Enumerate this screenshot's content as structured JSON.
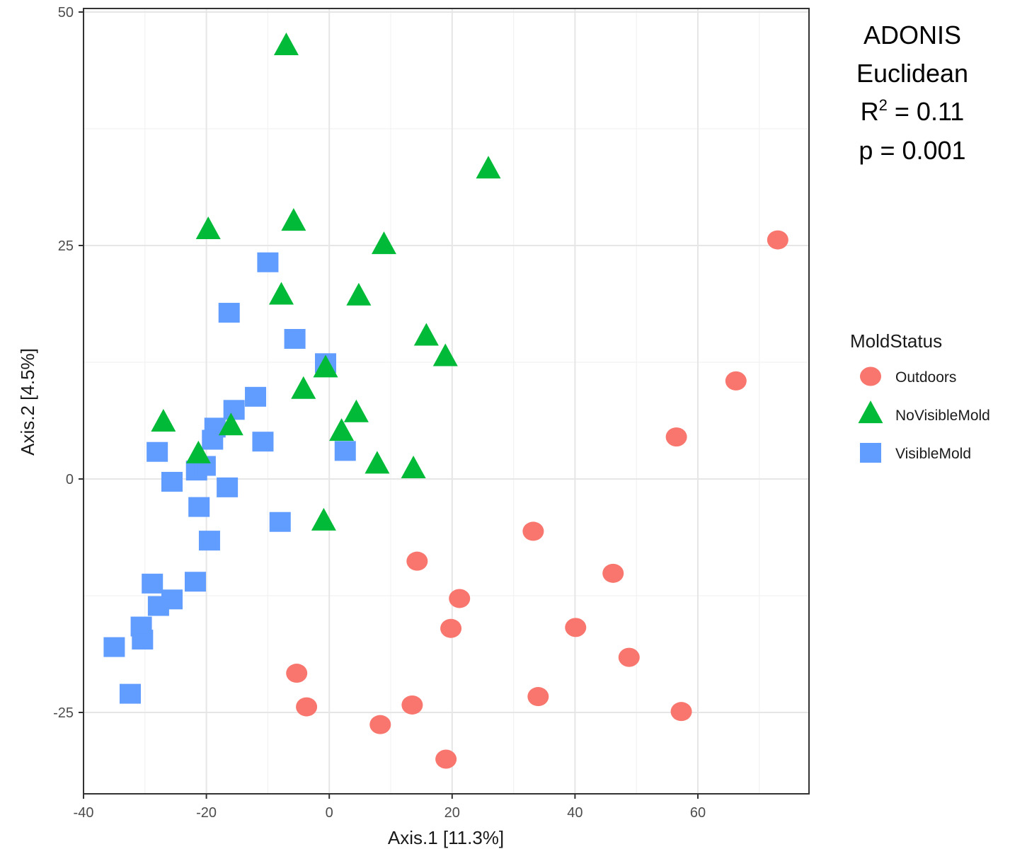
{
  "chart_data": {
    "type": "scatter",
    "xlabel": "Axis.1   [11.3%]",
    "ylabel": "Axis.2   [4.5%]",
    "xlim": [
      -40,
      78
    ],
    "ylim": [
      -33,
      50
    ],
    "xticks": [
      -40,
      -20,
      0,
      20,
      40,
      60
    ],
    "yticks": [
      -25,
      0,
      25,
      50
    ],
    "grid": true,
    "legend": {
      "title": "MoldStatus",
      "position": "right"
    },
    "annotation": {
      "line1": "ADONIS",
      "line2": "Euclidean",
      "line3_prefix": "R",
      "line3_sup": "2",
      "line3_suffix": " = 0.11",
      "line4": "p = 0.001"
    },
    "series": [
      {
        "name": "Outdoors",
        "shape": "circle",
        "color": "#F8766D",
        "points": [
          [
            73,
            25.6
          ],
          [
            66.2,
            10.5
          ],
          [
            56.5,
            4.5
          ],
          [
            33.2,
            -5.6
          ],
          [
            46.2,
            -10.1
          ],
          [
            14.3,
            -8.8
          ],
          [
            21.2,
            -12.8
          ],
          [
            19.8,
            -16
          ],
          [
            40.1,
            -15.9
          ],
          [
            48.8,
            -19.1
          ],
          [
            -5.3,
            -20.8
          ],
          [
            -3.7,
            -24.4
          ],
          [
            13.5,
            -24.2
          ],
          [
            34,
            -23.3
          ],
          [
            57.3,
            -24.9
          ],
          [
            8.3,
            -26.3
          ],
          [
            19,
            -30
          ]
        ]
      },
      {
        "name": "NoVisibleMold",
        "shape": "triangle",
        "color": "#00BA38",
        "points": [
          [
            -7,
            46.3
          ],
          [
            25.9,
            33.1
          ],
          [
            -19.7,
            26.6
          ],
          [
            -5.8,
            27.5
          ],
          [
            8.9,
            25
          ],
          [
            -7.8,
            19.6
          ],
          [
            4.8,
            19.5
          ],
          [
            15.8,
            15.2
          ],
          [
            18.9,
            13
          ],
          [
            -0.6,
            11.8
          ],
          [
            -4.2,
            9.5
          ],
          [
            4.4,
            7
          ],
          [
            2,
            5
          ],
          [
            -27,
            6
          ],
          [
            -16,
            5.6
          ],
          [
            -21.3,
            2.6
          ],
          [
            7.8,
            1.5
          ],
          [
            13.7,
            1
          ],
          [
            -0.9,
            -4.6
          ]
        ]
      },
      {
        "name": "VisibleMold",
        "shape": "square",
        "color": "#619CFF",
        "points": [
          [
            -10,
            23.2
          ],
          [
            -16.3,
            17.8
          ],
          [
            -5.6,
            15
          ],
          [
            -0.6,
            12.4
          ],
          [
            -12,
            8.8
          ],
          [
            -15.5,
            7.4
          ],
          [
            -18.6,
            5.5
          ],
          [
            -19,
            4.2
          ],
          [
            -10.8,
            4
          ],
          [
            2.6,
            3
          ],
          [
            -28,
            2.9
          ],
          [
            -25.6,
            -0.3
          ],
          [
            -21.6,
            0.9
          ],
          [
            -20.2,
            1.4
          ],
          [
            -16.6,
            -0.9
          ],
          [
            -21.2,
            -3
          ],
          [
            -19.5,
            -6.6
          ],
          [
            -8,
            -4.6
          ],
          [
            -28.8,
            -11.2
          ],
          [
            -21.8,
            -11
          ],
          [
            -25.6,
            -12.9
          ],
          [
            -27.8,
            -13.6
          ],
          [
            -30.6,
            -15.8
          ],
          [
            -30.4,
            -17.2
          ],
          [
            -35,
            -18
          ],
          [
            -32.4,
            -23
          ]
        ]
      }
    ]
  }
}
